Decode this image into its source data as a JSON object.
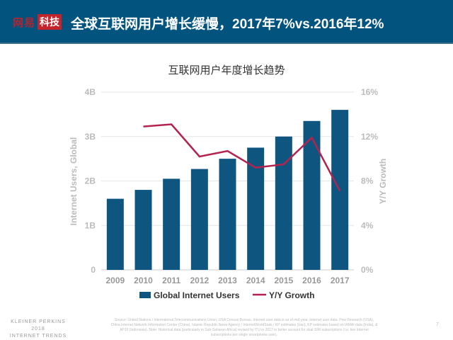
{
  "header": {
    "logo_part1": "网易",
    "logo_part2": "科技",
    "title": "全球互联网用户增长缓慢，2017年7%vs.2016年12%"
  },
  "chart_data": {
    "type": "bar+line",
    "title": "互联网用户年度增长趋势",
    "categories": [
      "2009",
      "2010",
      "2011",
      "2012",
      "2013",
      "2014",
      "2015",
      "2016",
      "2017"
    ],
    "series": [
      {
        "name": "Global Internet Users",
        "type": "bar",
        "axis": "left",
        "unit": "B",
        "values": [
          1.6,
          1.8,
          2.05,
          2.27,
          2.5,
          2.75,
          3.0,
          3.35,
          3.6
        ],
        "color": "#0e5580"
      },
      {
        "name": "Y/Y Growth",
        "type": "line",
        "axis": "right",
        "unit": "%",
        "values": [
          null,
          12.9,
          13.1,
          10.2,
          10.7,
          9.2,
          9.5,
          11.9,
          7.1
        ],
        "color": "#b3234f"
      }
    ],
    "ylabel": "Internet Users, Global",
    "y2label": "Y/Y Growth",
    "ylim": [
      0,
      4
    ],
    "y2lim": [
      0,
      16
    ],
    "yticks": [
      "0",
      "1B",
      "2B",
      "3B",
      "4B"
    ],
    "y2ticks": [
      "0%",
      "4%",
      "8%",
      "12%",
      "16%"
    ],
    "grid": true,
    "legend": "bottom"
  },
  "footer": {
    "brand": [
      "KLEINER PERKINS",
      "2018",
      "INTERNET TRENDS"
    ],
    "source": "Source: United Nations / International Telecommunications Union, USA Census Bureau. Internet user data is as of mid-year. Internet user data: Pew Research (USA), China Internet Network Information Center (China), Islamic Republic News Agency / InternetWorldStats / KP estimates (Iran), KP estimates based on IAMAI data (India), & APJII (Indonesia). Note: Historical data (particularly in Sub-Saharan Africa) revised by ITU in 2017 to better account for dual-SIM subscriptions (i.e. two Internet subscriptions per single smartphone user).",
    "page": "7"
  }
}
